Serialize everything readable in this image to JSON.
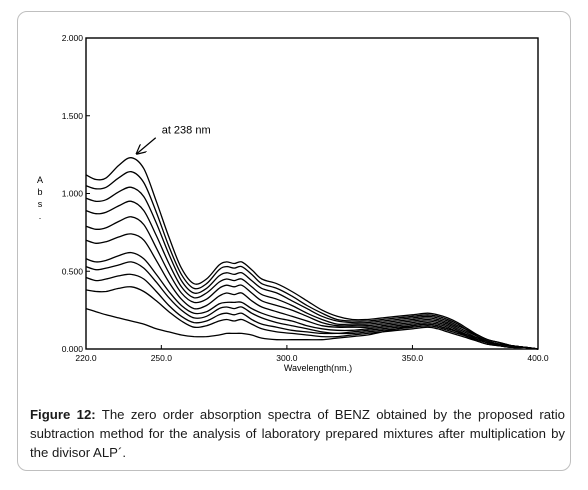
{
  "chart_data": {
    "type": "line",
    "xlabel": "Wavelength(nm.)",
    "ylabel_chars": [
      "A",
      "b",
      "s",
      "."
    ],
    "xlim": [
      220.0,
      400.0
    ],
    "ylim": [
      0.0,
      2.0
    ],
    "x_ticks": [
      "220.0",
      "250.0",
      "300.0",
      "350.0",
      "400.0"
    ],
    "y_ticks": [
      "0.000",
      "0.500",
      "1.000",
      "1.500",
      "2.000"
    ],
    "x_tick_values": [
      220,
      250,
      300,
      350,
      400
    ],
    "y_tick_values": [
      0,
      0.5,
      1.0,
      1.5,
      2.0
    ],
    "annotation": "at 238 nm",
    "annotation_target": [
      239,
      1.23
    ],
    "grid": false,
    "x": [
      220,
      224,
      228,
      233,
      238,
      243,
      248,
      253,
      258,
      263,
      268,
      273,
      276,
      279,
      282,
      286,
      290,
      296,
      302,
      308,
      314,
      320,
      326,
      332,
      338,
      344,
      350,
      356,
      360,
      364,
      368,
      372,
      376,
      380,
      385,
      390,
      395,
      400
    ],
    "series": [
      {
        "values": [
          1.12,
          1.09,
          1.1,
          1.18,
          1.23,
          1.16,
          0.95,
          0.72,
          0.52,
          0.42,
          0.45,
          0.54,
          0.56,
          0.55,
          0.56,
          0.51,
          0.45,
          0.42,
          0.37,
          0.31,
          0.25,
          0.21,
          0.19,
          0.19,
          0.2,
          0.21,
          0.22,
          0.23,
          0.22,
          0.2,
          0.17,
          0.13,
          0.09,
          0.06,
          0.04,
          0.02,
          0.01,
          0.0
        ]
      },
      {
        "values": [
          1.05,
          1.03,
          1.04,
          1.1,
          1.14,
          1.07,
          0.88,
          0.66,
          0.48,
          0.39,
          0.42,
          0.51,
          0.53,
          0.52,
          0.53,
          0.48,
          0.42,
          0.39,
          0.34,
          0.28,
          0.23,
          0.19,
          0.18,
          0.18,
          0.19,
          0.2,
          0.21,
          0.22,
          0.21,
          0.19,
          0.16,
          0.12,
          0.09,
          0.06,
          0.04,
          0.02,
          0.01,
          0.0
        ]
      },
      {
        "values": [
          0.97,
          0.95,
          0.96,
          1.01,
          1.04,
          0.98,
          0.81,
          0.61,
          0.44,
          0.36,
          0.39,
          0.47,
          0.49,
          0.48,
          0.49,
          0.44,
          0.39,
          0.36,
          0.31,
          0.26,
          0.21,
          0.18,
          0.17,
          0.17,
          0.18,
          0.19,
          0.2,
          0.21,
          0.2,
          0.18,
          0.15,
          0.12,
          0.08,
          0.05,
          0.03,
          0.02,
          0.01,
          0.0
        ]
      },
      {
        "values": [
          0.89,
          0.87,
          0.88,
          0.92,
          0.95,
          0.89,
          0.73,
          0.55,
          0.4,
          0.33,
          0.36,
          0.43,
          0.45,
          0.44,
          0.45,
          0.4,
          0.35,
          0.32,
          0.28,
          0.23,
          0.19,
          0.16,
          0.16,
          0.16,
          0.17,
          0.18,
          0.19,
          0.2,
          0.19,
          0.17,
          0.14,
          0.11,
          0.08,
          0.05,
          0.03,
          0.02,
          0.01,
          0.0
        ]
      },
      {
        "values": [
          0.79,
          0.77,
          0.78,
          0.82,
          0.85,
          0.8,
          0.65,
          0.49,
          0.36,
          0.3,
          0.32,
          0.39,
          0.41,
          0.4,
          0.41,
          0.36,
          0.31,
          0.28,
          0.25,
          0.21,
          0.17,
          0.15,
          0.15,
          0.15,
          0.16,
          0.17,
          0.18,
          0.19,
          0.18,
          0.16,
          0.13,
          0.1,
          0.07,
          0.05,
          0.03,
          0.02,
          0.01,
          0.0
        ]
      },
      {
        "values": [
          0.7,
          0.68,
          0.69,
          0.72,
          0.74,
          0.7,
          0.57,
          0.43,
          0.32,
          0.26,
          0.28,
          0.34,
          0.36,
          0.35,
          0.36,
          0.31,
          0.27,
          0.24,
          0.21,
          0.18,
          0.15,
          0.14,
          0.14,
          0.14,
          0.15,
          0.16,
          0.17,
          0.18,
          0.17,
          0.15,
          0.12,
          0.09,
          0.07,
          0.04,
          0.03,
          0.02,
          0.01,
          0.0
        ]
      },
      {
        "values": [
          0.58,
          0.56,
          0.57,
          0.6,
          0.62,
          0.58,
          0.48,
          0.37,
          0.28,
          0.23,
          0.24,
          0.29,
          0.3,
          0.3,
          0.3,
          0.26,
          0.23,
          0.2,
          0.18,
          0.15,
          0.13,
          0.12,
          0.12,
          0.13,
          0.14,
          0.15,
          0.16,
          0.17,
          0.16,
          0.14,
          0.11,
          0.09,
          0.06,
          0.04,
          0.03,
          0.02,
          0.01,
          0.0
        ]
      },
      {
        "values": [
          0.53,
          0.51,
          0.52,
          0.54,
          0.56,
          0.52,
          0.43,
          0.33,
          0.25,
          0.2,
          0.21,
          0.26,
          0.27,
          0.26,
          0.27,
          0.23,
          0.2,
          0.17,
          0.15,
          0.13,
          0.11,
          0.1,
          0.11,
          0.12,
          0.13,
          0.14,
          0.15,
          0.16,
          0.15,
          0.13,
          0.11,
          0.08,
          0.06,
          0.04,
          0.02,
          0.01,
          0.01,
          0.0
        ]
      },
      {
        "values": [
          0.46,
          0.44,
          0.45,
          0.47,
          0.48,
          0.45,
          0.37,
          0.28,
          0.21,
          0.17,
          0.18,
          0.22,
          0.23,
          0.22,
          0.23,
          0.19,
          0.16,
          0.14,
          0.12,
          0.11,
          0.1,
          0.1,
          0.1,
          0.11,
          0.12,
          0.13,
          0.14,
          0.15,
          0.14,
          0.12,
          0.1,
          0.08,
          0.05,
          0.03,
          0.02,
          0.01,
          0.01,
          0.0
        ]
      },
      {
        "values": [
          0.38,
          0.37,
          0.37,
          0.39,
          0.4,
          0.37,
          0.31,
          0.24,
          0.18,
          0.14,
          0.15,
          0.18,
          0.19,
          0.18,
          0.19,
          0.16,
          0.13,
          0.11,
          0.1,
          0.09,
          0.08,
          0.08,
          0.09,
          0.1,
          0.11,
          0.12,
          0.13,
          0.14,
          0.13,
          0.11,
          0.09,
          0.07,
          0.05,
          0.03,
          0.02,
          0.01,
          0.01,
          0.0
        ]
      },
      {
        "values": [
          0.26,
          0.24,
          0.22,
          0.2,
          0.18,
          0.16,
          0.13,
          0.11,
          0.09,
          0.08,
          0.08,
          0.09,
          0.1,
          0.1,
          0.1,
          0.09,
          0.07,
          0.06,
          0.06,
          0.06,
          0.06,
          0.07,
          0.08,
          0.09,
          0.11,
          0.13,
          0.15,
          0.16,
          0.15,
          0.13,
          0.11,
          0.08,
          0.06,
          0.04,
          0.02,
          0.01,
          0.01,
          0.0
        ]
      }
    ]
  },
  "caption": {
    "label": "Figure 12:",
    "text": " The zero order absorption spectra of BENZ obtained by the proposed ratio subtraction method for the analysis of laboratory prepared mixtures after multiplication by the divisor ALP´."
  },
  "colors": {
    "line": "#000000",
    "frame": "#bfbfbf"
  }
}
